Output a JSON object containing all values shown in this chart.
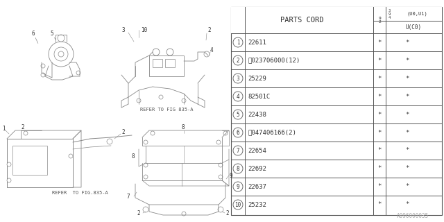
{
  "bg_color": "#ffffff",
  "line_color": "#888888",
  "text_color": "#333333",
  "dark_color": "#555555",
  "header_label": "PARTS CORD",
  "col2_top": "(U0,U1)",
  "col2_bot": "U(C0)",
  "rows": [
    [
      "1",
      "22611",
      "*",
      "*"
    ],
    [
      "2",
      "Ⓝ023706000(12)",
      "*",
      "*"
    ],
    [
      "3",
      "25229",
      "*",
      "*"
    ],
    [
      "4",
      "82501C",
      "*",
      "*"
    ],
    [
      "5",
      "22438",
      "*",
      "*"
    ],
    [
      "6",
      "Ⓜ047406166(2)",
      "*",
      "*"
    ],
    [
      "7",
      "22654",
      "*",
      "*"
    ],
    [
      "8",
      "22692",
      "*",
      "*"
    ],
    [
      "9",
      "22637",
      "*",
      "*"
    ],
    [
      "10",
      "25232",
      "*",
      "*"
    ]
  ],
  "diagram_label": "A096000035",
  "ref1": "REFER TO FIG 835-A",
  "ref2": "REFER  TO FIG.835-A",
  "font_size": 6.5,
  "table_fs": 6.5
}
